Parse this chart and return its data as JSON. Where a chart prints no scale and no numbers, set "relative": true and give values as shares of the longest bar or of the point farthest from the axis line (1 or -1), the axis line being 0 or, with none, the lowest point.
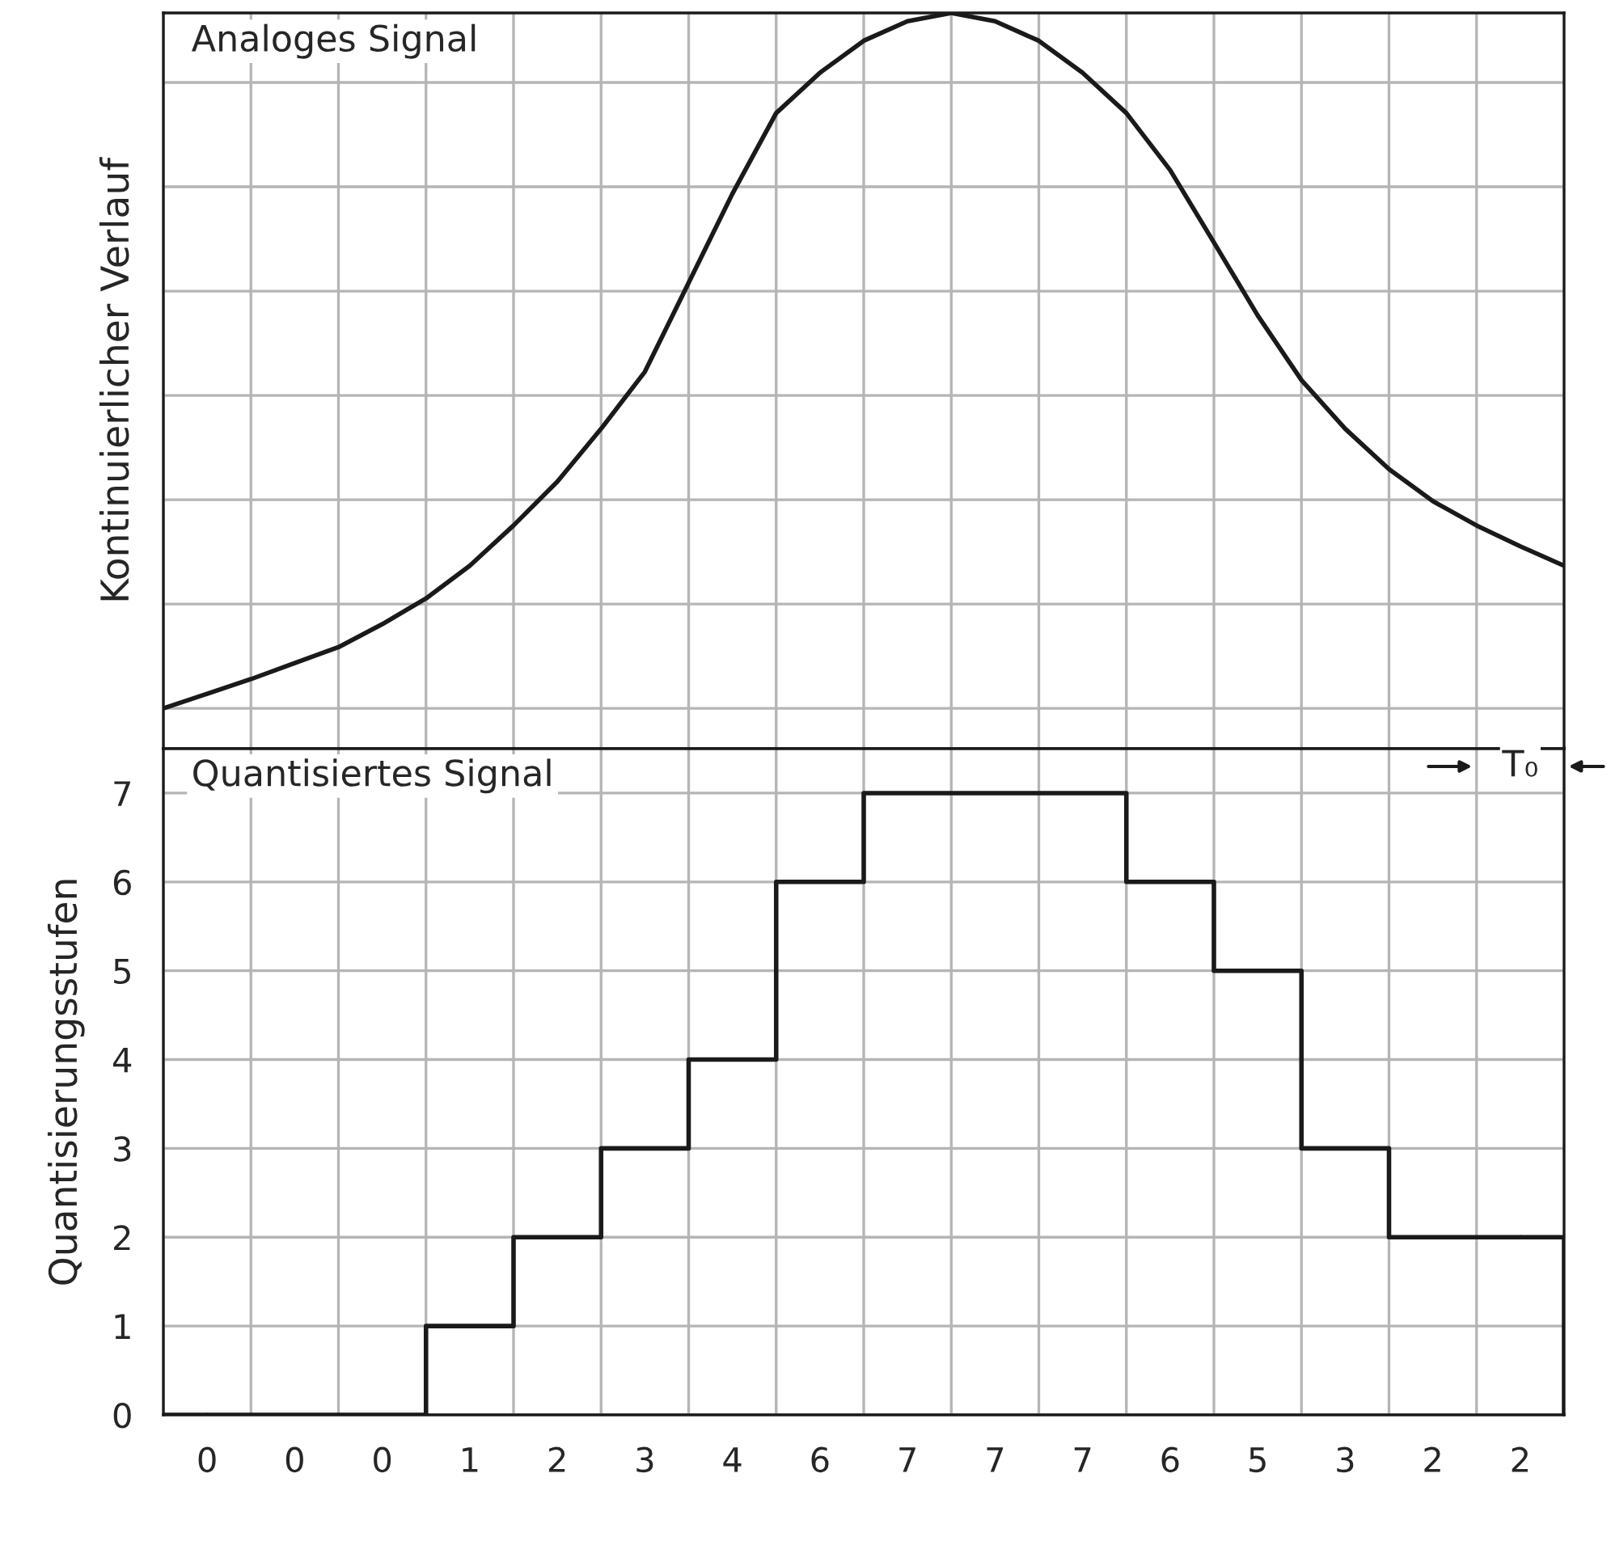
{
  "chart_data": [
    {
      "type": "line",
      "title": "Analoges Signal",
      "ylabel": "Kontinuierlicher Verlauf",
      "relative": true,
      "categories": [
        null,
        null,
        null,
        null,
        null,
        null,
        null,
        null,
        null,
        null,
        null,
        null,
        null,
        null,
        null,
        null,
        null,
        null,
        null,
        null,
        null,
        null,
        null,
        null,
        null,
        null,
        null,
        null,
        null,
        null,
        null,
        null,
        null
      ],
      "series": [
        {
          "color": "#1a1a1a",
          "values": [
            0,
            0.021,
            0.042,
            0.065,
            0.088,
            0.121,
            0.158,
            0.205,
            0.263,
            0.326,
            0.402,
            0.484,
            0.612,
            0.74,
            0.856,
            0.914,
            0.96,
            0.988,
            1,
            0.988,
            0.96,
            0.914,
            0.856,
            0.774,
            0.67,
            0.565,
            0.472,
            0.402,
            0.344,
            0.298,
            0.263,
            0.233,
            0.205
          ]
        }
      ],
      "grid": true
    },
    {
      "type": "step",
      "title": "Quantisiertes Signal",
      "ylabel": "Quantisierungsstufen",
      "categories": [
        "0",
        "0",
        "0",
        "1",
        "2",
        "3",
        "4",
        "6",
        "7",
        "7",
        "7",
        "6",
        "5",
        "3",
        "2",
        "2"
      ],
      "series": [
        {
          "color": "#1a1a1a",
          "values": [
            0,
            0,
            0,
            1,
            2,
            3,
            4,
            6,
            7,
            7,
            7,
            6,
            5,
            3,
            2,
            2
          ]
        }
      ],
      "ylim": [
        0,
        7.5
      ],
      "yticks": [
        0,
        1,
        2,
        3,
        4,
        5,
        6,
        7
      ],
      "grid": true,
      "annotations": [
        "T₀"
      ]
    }
  ]
}
